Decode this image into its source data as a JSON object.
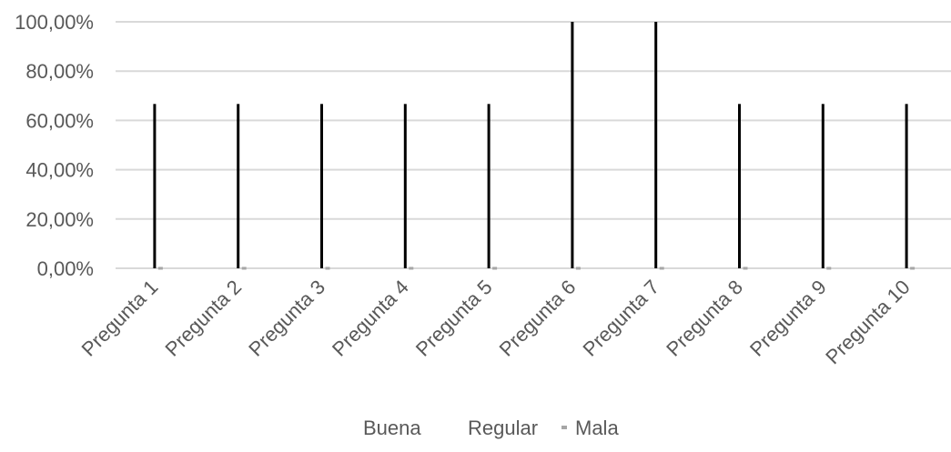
{
  "chart_data": {
    "type": "bar",
    "categories": [
      "Pregunta 1",
      "Pregunta 2",
      "Pregunta 3",
      "Pregunta 4",
      "Pregunta 5",
      "Pregunta 6",
      "Pregunta 7",
      "Pregunta 8",
      "Pregunta 9",
      "Pregunta 10"
    ],
    "series": [
      {
        "name": "Buena",
        "color": "#000000",
        "values": [
          66.67,
          66.67,
          66.67,
          66.67,
          66.67,
          100,
          100,
          66.67,
          66.67,
          66.67
        ]
      },
      {
        "name": "Regular",
        "color": "#000000",
        "values": [
          0,
          0,
          0,
          0,
          0,
          0,
          0,
          0,
          0,
          0
        ]
      },
      {
        "name": "Mala",
        "color": "#a6a6a6",
        "values": [
          0,
          0,
          0,
          0,
          0,
          0,
          0,
          0,
          0,
          0
        ]
      }
    ],
    "y_ticks": [
      "0,00%",
      "20,00%",
      "40,00%",
      "60,00%",
      "80,00%",
      "100,00%"
    ],
    "ylim": [
      0,
      100
    ],
    "grid": true,
    "legend_position": "bottom"
  }
}
